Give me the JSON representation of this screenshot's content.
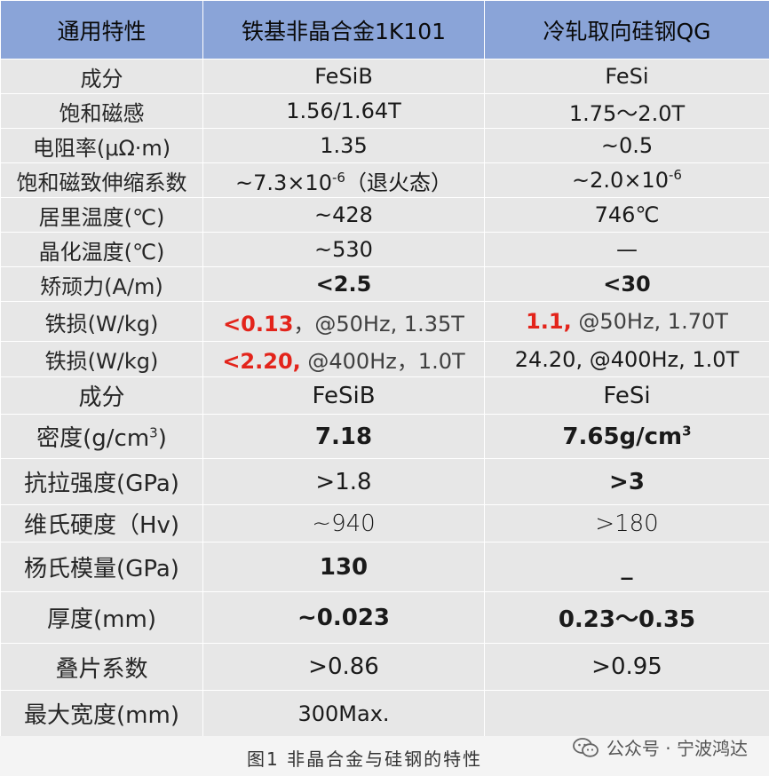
{
  "table": {
    "headers": [
      "通用特性",
      "铁基非晶合金1K101",
      "冷轧取向硅钢QG"
    ],
    "rows": [
      {
        "label": "成分",
        "a": "FeSiB",
        "b": "FeSi"
      },
      {
        "label": "饱和磁感",
        "a": "1.56/1.64T",
        "b": "1.75～2.0T"
      },
      {
        "label": "电阻率(μΩ·m)",
        "a": "1.35",
        "b": "~0.5"
      },
      {
        "label": "饱和磁致伸缩系数",
        "a_base": "~7.3×10",
        "a_exp": "-6",
        "a_suffix": "（退火态）",
        "b_base": "~2.0×10",
        "b_exp": "-6"
      },
      {
        "label": "居里温度(℃)",
        "a": "~428",
        "b": "746℃"
      },
      {
        "label": "晶化温度(℃)",
        "a": "~530",
        "b": "—"
      },
      {
        "label": "矫顽力(A/m)",
        "a": "<2.5",
        "b": "<30"
      },
      {
        "label": "铁损(W/kg)",
        "a_main": "<0.13",
        "a_rest": "，@50Hz, 1.35T",
        "b_main": "1.1,",
        "b_rest": " @50Hz, 1.70T"
      },
      {
        "label": "铁损(W/kg)",
        "a_main": "<2.20,",
        "a_rest": " @400Hz，1.0T",
        "b": "24.20, @400Hz, 1.0T"
      },
      {
        "label": "成分",
        "a": "FeSiB",
        "b": "FeSi"
      },
      {
        "label_base": "密度(g/cm",
        "label_exp": "3",
        "label_end": ")",
        "a": "7.18",
        "b_base": "7.65g/cm",
        "b_exp": "3"
      },
      {
        "label": "抗拉强度(GPa)",
        "a": ">1.8",
        "b": ">3"
      },
      {
        "label": "维氏硬度（Hv)",
        "a": "~940",
        "b": ">180"
      },
      {
        "label": "杨氏模量(GPa)",
        "a": "130",
        "b": "_"
      },
      {
        "label": "厚度(mm)",
        "a": "~0.023",
        "b": "0.23～0.35"
      },
      {
        "label": "叠片系数",
        "a": ">0.86",
        "b": ">0.95"
      },
      {
        "label": "最大宽度(mm)",
        "a": "300Max.",
        "b": ""
      }
    ]
  },
  "caption": "图1 非晶合金与硅钢的特性",
  "watermark": {
    "icon": "wechat-icon",
    "text": "公众号 · 宁波鸿达"
  }
}
